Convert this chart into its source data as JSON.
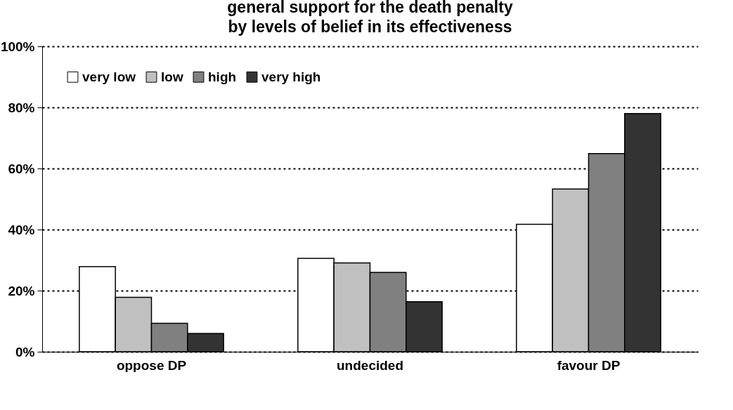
{
  "chart_data": {
    "type": "bar",
    "title": "general support for the death penalty\nby levels of belief in its effectiveness",
    "categories": [
      "oppose DP",
      "undecided",
      "favour DP"
    ],
    "series": [
      {
        "name": "very low",
        "color": "#ffffff",
        "values": [
          27.9,
          30.6,
          41.7
        ]
      },
      {
        "name": "low",
        "color": "#c0c0c0",
        "values": [
          17.8,
          29.1,
          53.3
        ]
      },
      {
        "name": "high",
        "color": "#808080",
        "values": [
          9.3,
          26.0,
          64.9
        ]
      },
      {
        "name": "very high",
        "color": "#333333",
        "values": [
          6.0,
          16.4,
          78.0
        ]
      }
    ],
    "ylim": [
      0,
      100
    ],
    "yticks": [
      {
        "value": 0,
        "label": "0%"
      },
      {
        "value": 20,
        "label": "20%"
      },
      {
        "value": 40,
        "label": "40%"
      },
      {
        "value": 60,
        "label": "60%"
      },
      {
        "value": 80,
        "label": "80%"
      },
      {
        "value": 100,
        "label": "100%"
      }
    ],
    "grid": "y",
    "legend": "top left"
  }
}
